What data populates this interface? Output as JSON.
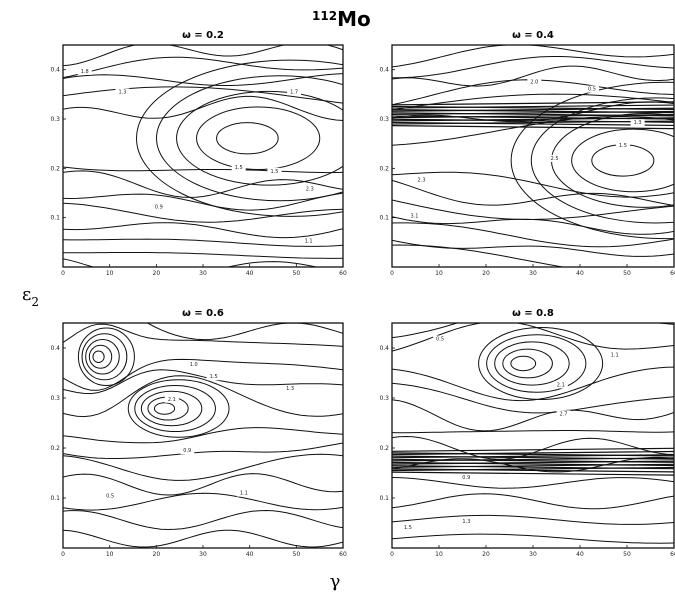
{
  "figure": {
    "nucleus_mass": "112",
    "nucleus_symbol": "Mo",
    "y_axis_symbol": "ε",
    "y_axis_subscript": "2",
    "x_axis_symbol": "γ"
  },
  "chart_data": [
    {
      "type": "contour",
      "title": "ω = 0.2",
      "x_ticks": [
        "0",
        "10",
        "20",
        "30",
        "40",
        "50",
        "60"
      ],
      "y_ticks": [
        "0.1",
        "0.2",
        "0.3",
        "0.4"
      ],
      "xlim": [
        0,
        60
      ],
      "ylim": [
        0,
        0.45
      ],
      "contour_labels": [
        "1.3",
        "1.7",
        "1.5",
        "0.9",
        "1.8",
        "2.3",
        "1.5",
        "1.1"
      ]
    },
    {
      "type": "contour",
      "title": "ω = 0.4",
      "x_ticks": [
        "0",
        "10",
        "20",
        "30",
        "40",
        "50",
        "60"
      ],
      "y_ticks": [
        "0.1",
        "0.2",
        "0.3",
        "0.4"
      ],
      "xlim": [
        0,
        60
      ],
      "ylim": [
        0,
        0.45
      ],
      "contour_labels": [
        "2.5",
        "1.3",
        "2.0",
        "1.5",
        "2.3",
        "0.5",
        "3.1"
      ]
    },
    {
      "type": "contour",
      "title": "ω = 0.6",
      "x_ticks": [
        "0",
        "10",
        "20",
        "30",
        "40",
        "50",
        "60"
      ],
      "y_ticks": [
        "0.1",
        "0.2",
        "0.3",
        "0.4"
      ],
      "xlim": [
        0,
        60
      ],
      "ylim": [
        0,
        0.45
      ],
      "contour_labels": [
        "1.1",
        "1.0",
        "0.5",
        "1.5",
        "2.1",
        "0.9",
        "1.3"
      ]
    },
    {
      "type": "contour",
      "title": "ω = 0.8",
      "x_ticks": [
        "0",
        "10",
        "20",
        "30",
        "40",
        "50",
        "60"
      ],
      "y_ticks": [
        "0.1",
        "0.2",
        "0.3",
        "0.4"
      ],
      "xlim": [
        0,
        60
      ],
      "ylim": [
        0,
        0.45
      ],
      "contour_labels": [
        "1.5",
        "2.1",
        "1.3",
        "0.9",
        "2.7",
        "1.1",
        "0.5"
      ]
    }
  ]
}
